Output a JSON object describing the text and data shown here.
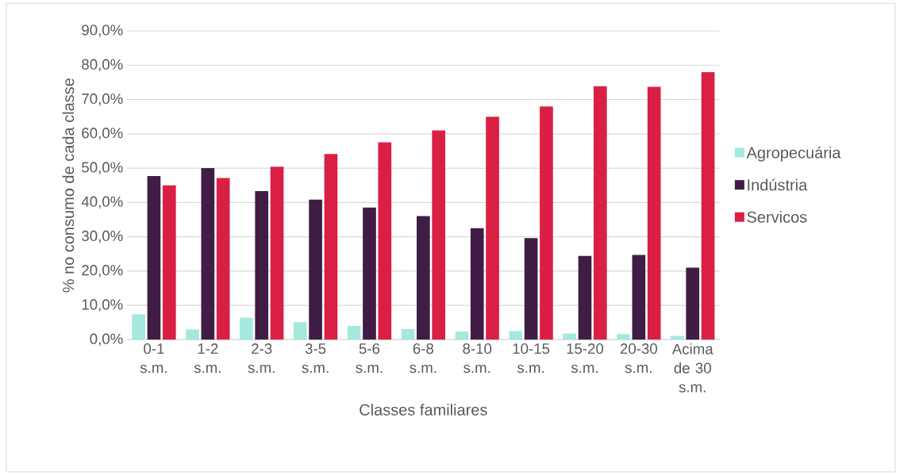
{
  "chart_data": {
    "type": "bar",
    "xlabel": "Classes familiares",
    "ylabel": "% no consumo de cada classe",
    "categories": [
      "0-1 s.m.",
      "1-2 s.m.",
      "2-3 s.m.",
      "3-5 s.m.",
      "5-6 s.m.",
      "6-8 s.m.",
      "8-10 s.m.",
      "10-15 s.m.",
      "15-20 s.m.",
      "20-30 s.m.",
      "Acima de 30 s.m."
    ],
    "series": [
      {
        "name": "Agropecuária",
        "color": "#a5e8de",
        "values": [
          7.4,
          3.0,
          6.4,
          5.1,
          4.0,
          3.1,
          2.4,
          2.5,
          1.8,
          1.6,
          1.1
        ]
      },
      {
        "name": "Indústria",
        "color": "#3f1d45",
        "values": [
          47.7,
          50.0,
          43.3,
          40.8,
          38.5,
          36.0,
          32.5,
          29.6,
          24.4,
          24.7,
          21.0
        ]
      },
      {
        "name": "Servicos",
        "color": "#da1f45",
        "values": [
          45.0,
          47.1,
          50.4,
          54.1,
          57.5,
          61.0,
          65.0,
          68.0,
          73.9,
          73.7,
          78.0
        ]
      }
    ],
    "ylim": [
      0,
      90
    ],
    "yticks": [
      {
        "value": 0,
        "label": "0,0%"
      },
      {
        "value": 10,
        "label": "10,0%"
      },
      {
        "value": 20,
        "label": "20,0%"
      },
      {
        "value": 30,
        "label": "30,0%"
      },
      {
        "value": 40,
        "label": "40,0%"
      },
      {
        "value": 50,
        "label": "50,0%"
      },
      {
        "value": 60,
        "label": "60,0%"
      },
      {
        "value": 70,
        "label": "70,0%"
      },
      {
        "value": 80,
        "label": "80,0%"
      },
      {
        "value": 90,
        "label": "90,0%"
      }
    ],
    "grid": "y",
    "legend": "right"
  }
}
